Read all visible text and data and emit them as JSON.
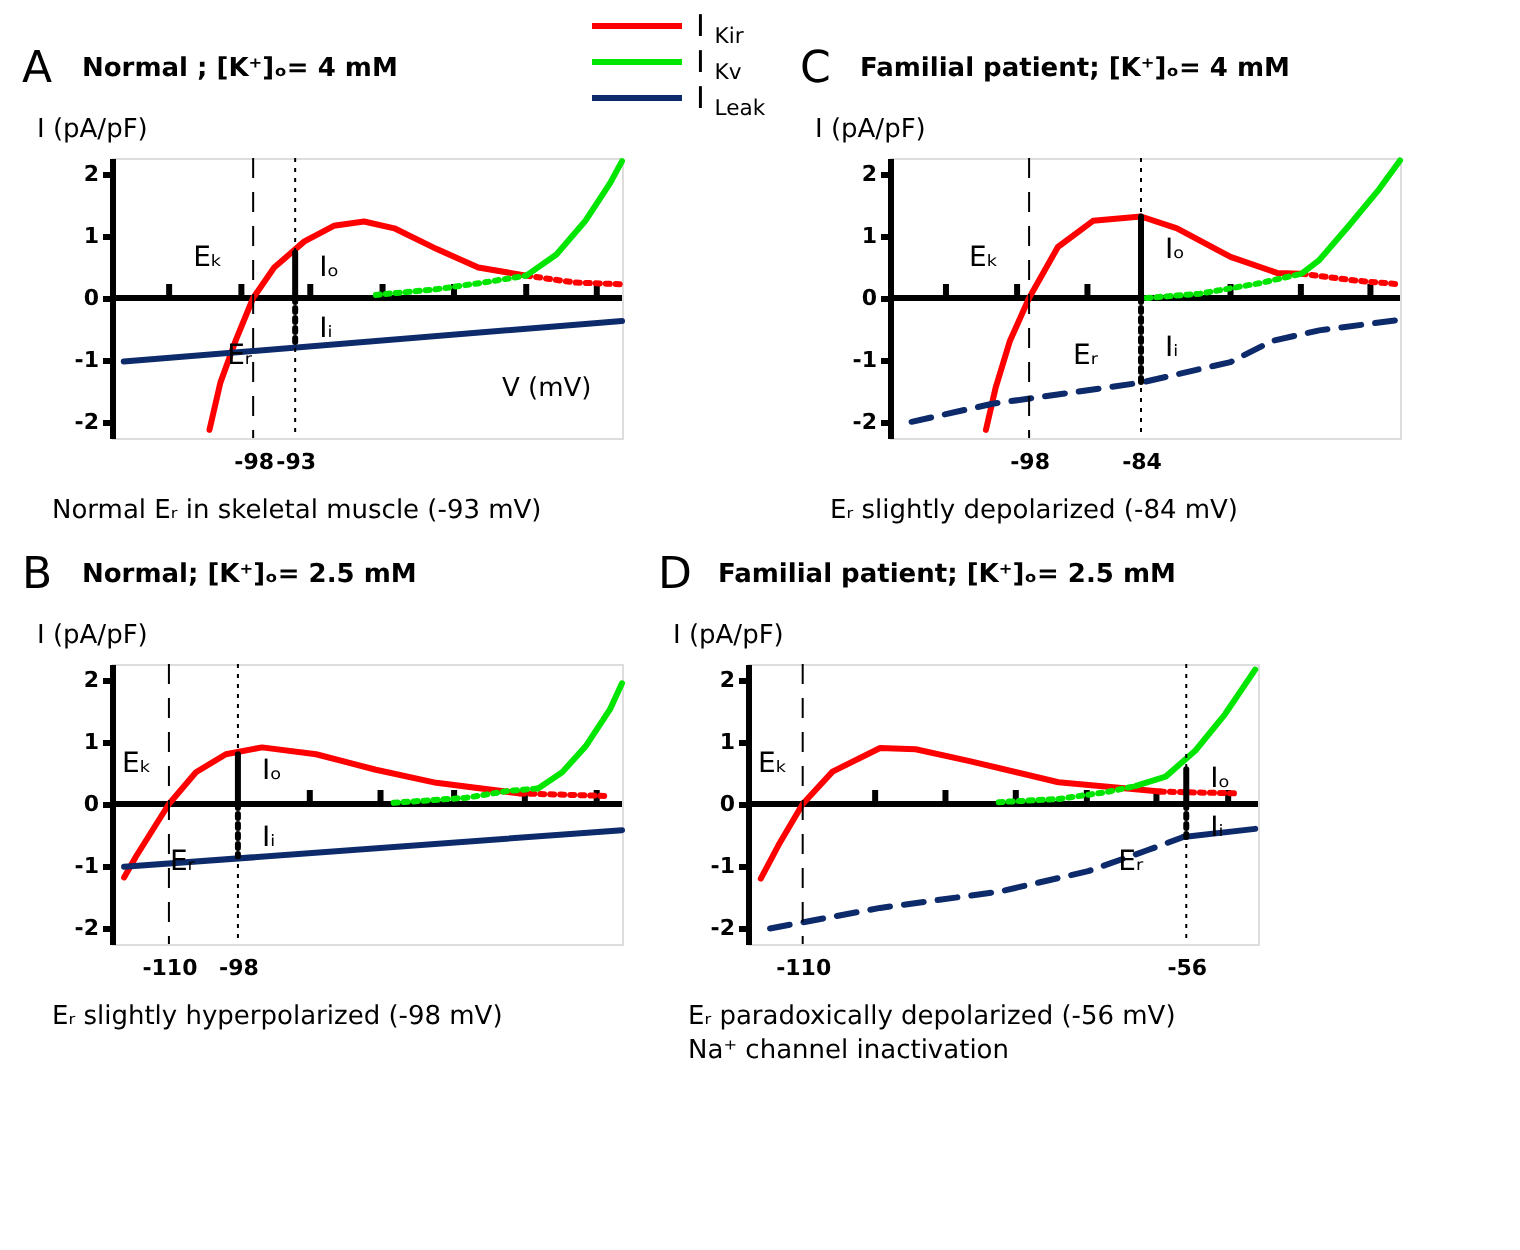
{
  "chart_data": [
    {
      "type": "line",
      "title": "Normal ; [K⁺]ₒ= 4 mM",
      "ylabel": "I (pA/pF)",
      "xlabel": "V (mV)",
      "subtitle": "Normal Eᵣ in skeletal muscle (-93 mV)",
      "legend": "top right",
      "xlim": [
        -114.8,
        -54.1
      ],
      "ylim": [
        -2.25,
        2.25
      ],
      "yticks": [
        -2,
        -1,
        0,
        1,
        2
      ],
      "xticks": [
        {
          "value": -108,
          "label": null
        },
        {
          "value": -99.4,
          "label": null
        },
        -98,
        -93,
        {
          "value": -91.2,
          "label": null
        },
        {
          "value": -82.6,
          "label": null
        },
        {
          "value": -74.1,
          "label": null
        },
        {
          "value": -65.5,
          "label": null
        },
        {
          "value": -57.1,
          "label": null
        }
      ],
      "series": [
        {
          "name": "I$_{Kir}$",
          "color": "#ff0000",
          "x": [
            -103.2,
            -101.9,
            -100.1,
            -98,
            -95.5,
            -91.9,
            -88.4,
            -84.8,
            -81.2,
            -76.2,
            -71.2,
            -65.5
          ],
          "values": [
            -2.12,
            -1.36,
            -0.69,
            0,
            0.49,
            0.91,
            1.16,
            1.23,
            1.12,
            0.79,
            0.49,
            0.36
          ]
        },
        {
          "color": "#ff0000",
          "line_style": "dotted",
          "x": [
            -65.5,
            -59.8,
            -54.1
          ],
          "values": [
            0.36,
            0.25,
            0.22
          ]
        },
        {
          "color": "#00e600",
          "line_style": "dotted",
          "x": [
            -83.4,
            -76.2,
            -70.5,
            -65.5
          ],
          "values": [
            0.05,
            0.14,
            0.25,
            0.36
          ]
        },
        {
          "name": "I$_{Kv}$",
          "color": "#00e600",
          "x": [
            -65.5,
            -61.9,
            -58.4,
            -55.5,
            -54.1
          ],
          "values": [
            0.36,
            0.7,
            1.25,
            1.85,
            2.2
          ]
        },
        {
          "name": "I$_{Leak}$",
          "color": "#0d2a6b",
          "x": [
            -113.4,
            -54.1
          ],
          "values": [
            -1.02,
            -0.37
          ]
        },
        {
          "color": "#000000",
          "x": [
            -93,
            -93
          ],
          "values": [
            0,
            0.73
          ]
        },
        {
          "color": "#000000",
          "line_style": "dotted",
          "x": [
            -93,
            -93
          ],
          "values": [
            0,
            -0.74
          ]
        }
      ],
      "ref_lines": [
        {
          "axis": "x",
          "value": -98,
          "line_style": "dashed",
          "color": "#000000"
        },
        {
          "axis": "x",
          "value": -93,
          "line_style": "dotted",
          "color": "#000000"
        }
      ],
      "annotations": [
        "A",
        {
          "text": "Eₖ",
          "x": -98,
          "y": 0
        },
        {
          "text": "Eᵣ",
          "x": -93,
          "y": -0.1
        },
        {
          "text": "Iₒ",
          "x": -93,
          "y": 0.36
        },
        {
          "text": "Iᵢ",
          "x": -93,
          "y": -0.37
        }
      ]
    },
    {
      "type": "line",
      "title": "Familial patient; [K⁺]ₒ= 4 mM",
      "ylabel": "I (pA/pF)",
      "subtitle": "Eᵣ slightly depolarized (-84 mV)",
      "xlim": [
        -115.4,
        -51.6
      ],
      "ylim": [
        -2.25,
        2.25
      ],
      "yticks": [
        -2,
        -1,
        0,
        1,
        2
      ],
      "xticks": [
        {
          "value": -108.4,
          "label": null
        },
        {
          "value": -99.5,
          "label": null
        },
        -98,
        {
          "value": -90.7,
          "label": null
        },
        -84,
        {
          "value": -72.8,
          "label": null
        },
        {
          "value": -64.0,
          "label": null
        },
        {
          "value": -55.3,
          "label": null
        }
      ],
      "series": [
        {
          "color": "#ff0000",
          "x": [
            -103.4,
            -102.2,
            -100.4,
            -98,
            -94.4,
            -90,
            -84,
            -79.5,
            -72.8,
            -66.9,
            -63.9
          ],
          "values": [
            -2.12,
            -1.45,
            -0.69,
            0,
            0.82,
            1.24,
            1.31,
            1.12,
            0.66,
            0.4,
            0.39
          ]
        },
        {
          "color": "#ff0000",
          "line_style": "dotted",
          "x": [
            -63.9,
            -57.2,
            -51.6
          ],
          "values": [
            0.39,
            0.28,
            0.22
          ]
        },
        {
          "color": "#00e600",
          "line_style": "dotted",
          "x": [
            -83.3,
            -76.6,
            -69.1,
            -63.9
          ],
          "values": [
            0,
            0.07,
            0.24,
            0.39
          ]
        },
        {
          "color": "#00e600",
          "x": [
            -63.9,
            -61.7,
            -58,
            -54.2,
            -51.6
          ],
          "values": [
            0.39,
            0.61,
            1.16,
            1.75,
            2.21
          ]
        },
        {
          "color": "#0d2a6b",
          "line_style": "dashed",
          "x": [
            -112.7,
            -102.6,
            -84,
            -72.8,
            -67.6,
            -61.7,
            -51.6
          ],
          "values": [
            -1.99,
            -1.7,
            -1.36,
            -1.03,
            -0.69,
            -0.52,
            -0.35
          ]
        },
        {
          "color": "#000000",
          "x": [
            -84,
            -84
          ],
          "values": [
            0,
            1.31
          ]
        },
        {
          "color": "#000000",
          "line_style": "dotted",
          "x": [
            -84,
            -84
          ],
          "values": [
            0,
            -1.36
          ]
        }
      ],
      "ref_lines": [
        {
          "axis": "x",
          "value": -98,
          "line_style": "dashed",
          "color": "#000000"
        },
        {
          "axis": "x",
          "value": -84,
          "line_style": "dotted",
          "color": "#000000"
        }
      ],
      "annotations": [
        "C",
        {
          "text": "Eₖ",
          "x": -98,
          "y": 0
        },
        {
          "text": "Eᵣ",
          "x": -84,
          "y": -0.1
        },
        {
          "text": "Iₒ",
          "x": -84,
          "y": 0.65
        },
        {
          "text": "Iᵢ",
          "x": -84,
          "y": -0.68
        }
      ]
    },
    {
      "type": "line",
      "title": "Normal; [K⁺]ₒ= 2.5 mM",
      "ylabel": "I (pA/pF)",
      "subtitle": "Eᵣ slightly hyperpolarized (-98 mV)",
      "xlim": [
        -119.9,
        -31.2
      ],
      "ylim": [
        -2.25,
        2.25
      ],
      "yticks": [
        -2,
        -1,
        0,
        1,
        2
      ],
      "xticks": [
        -110,
        -98,
        {
          "value": -85.5,
          "label": null
        },
        {
          "value": -73.2,
          "label": null
        },
        {
          "value": -60.4,
          "label": null
        },
        {
          "value": -48.1,
          "label": null
        },
        {
          "value": -35.6,
          "label": null
        }
      ],
      "series": [
        {
          "color": "#ff0000",
          "x": [
            -117.8,
            -115.7,
            -110,
            -105.3,
            -100.1,
            -93.8,
            -84.4,
            -74,
            -63.5,
            -48.9
          ],
          "values": [
            -1.18,
            -0.84,
            0,
            0.51,
            0.8,
            0.91,
            0.8,
            0.55,
            0.34,
            0.17
          ]
        },
        {
          "color": "#ff0000",
          "line_style": "dotted",
          "x": [
            -48.9,
            -34.3
          ],
          "values": [
            0.17,
            0.13
          ]
        },
        {
          "color": "#00e600",
          "line_style": "dotted",
          "x": [
            -70.9,
            -58.3,
            -51,
            -45.8
          ],
          "values": [
            0.02,
            0.1,
            0.21,
            0.25
          ]
        },
        {
          "color": "#00e600",
          "x": [
            -45.8,
            -41.6,
            -37.5,
            -33.3,
            -31.2
          ],
          "values": [
            0.25,
            0.51,
            0.93,
            1.52,
            1.94
          ]
        },
        {
          "color": "#0d2a6b",
          "x": [
            -117.8,
            -31.2
          ],
          "values": [
            -1.01,
            -0.42
          ]
        },
        {
          "color": "#000000",
          "x": [
            -98,
            -98
          ],
          "values": [
            0,
            0.8
          ]
        },
        {
          "color": "#000000",
          "line_style": "dotted",
          "x": [
            -98,
            -98
          ],
          "values": [
            0,
            -0.84
          ]
        }
      ],
      "ref_lines": [
        {
          "axis": "x",
          "value": -110,
          "line_style": "dashed",
          "color": "#000000"
        },
        {
          "axis": "x",
          "value": -98,
          "line_style": "dotted",
          "color": "#000000"
        }
      ],
      "annotations": [
        "B",
        {
          "text": "Eₖ",
          "x": -110,
          "y": 0
        },
        {
          "text": "Eᵣ",
          "x": -98,
          "y": -0.1
        },
        {
          "text": "Iₒ",
          "x": -98,
          "y": 0.4
        },
        {
          "text": "Iᵢ",
          "x": -98,
          "y": -0.42
        }
      ]
    },
    {
      "type": "line",
      "title": "Familial patient; [K⁺]ₒ= 2.5 mM",
      "ylabel": "I (pA/pF)",
      "subtitle": "Eᵣ paradoxically depolarized (-56 mV)",
      "xlim": [
        -117.7,
        -45.9
      ],
      "ylim": [
        -2.25,
        2.25
      ],
      "yticks": [
        -2,
        -1,
        0,
        1,
        2
      ],
      "xticks": [
        -110,
        {
          "value": -99.8,
          "label": null
        },
        {
          "value": -89.9,
          "label": null
        },
        {
          "value": -80,
          "label": null
        },
        {
          "value": -70,
          "label": null
        },
        {
          "value": -60.2,
          "label": null
        },
        -56,
        {
          "value": -50.1,
          "label": null
        }
      ],
      "series": [
        {
          "color": "#ff0000",
          "x": [
            -115.9,
            -113.4,
            -110,
            -105.8,
            -99.1,
            -94.1,
            -86.5,
            -74,
            -59.7
          ],
          "values": [
            -1.2,
            -0.66,
            0,
            0.52,
            0.9,
            0.88,
            0.69,
            0.35,
            0.2
          ]
        },
        {
          "color": "#ff0000",
          "line_style": "dotted",
          "x": [
            -59.7,
            -48.9
          ],
          "values": [
            0.2,
            0.17
          ]
        },
        {
          "color": "#00e600",
          "line_style": "dotted",
          "x": [
            -82.4,
            -74,
            -67.3,
            -63.1
          ],
          "values": [
            0.03,
            0.08,
            0.19,
            0.29
          ]
        },
        {
          "color": "#00e600",
          "x": [
            -63.1,
            -58.9,
            -54.7,
            -50.5,
            -46.3
          ],
          "values": [
            0.29,
            0.44,
            0.86,
            1.45,
            2.16
          ]
        },
        {
          "color": "#0d2a6b",
          "line_style": "dashed",
          "x": [
            -114.6,
            -99.1,
            -82.4,
            -69.8,
            -61.4,
            -56.4
          ],
          "values": [
            -2.0,
            -1.67,
            -1.41,
            -1.08,
            -0.74,
            -0.53
          ]
        },
        {
          "color": "#0d2a6b",
          "x": [
            -56.4,
            -46.3
          ],
          "values": [
            -0.53,
            -0.4
          ]
        },
        {
          "color": "#000000",
          "x": [
            -56,
            -56
          ],
          "values": [
            0,
            0.56
          ]
        },
        {
          "color": "#000000",
          "line_style": "dotted",
          "x": [
            -56,
            -56
          ],
          "values": [
            0,
            -0.53
          ]
        }
      ],
      "ref_lines": [
        {
          "axis": "x",
          "value": -110,
          "line_style": "dashed",
          "color": "#000000"
        },
        {
          "axis": "x",
          "value": -56,
          "line_style": "dotted",
          "color": "#000000"
        }
      ],
      "annotations": [
        "D",
        "Na⁺ channel inactivation",
        {
          "text": "Eₖ",
          "x": -110,
          "y": 0
        },
        {
          "text": "Eᵣ",
          "x": -56,
          "y": -0.1
        },
        {
          "text": "Iₒ",
          "x": -56,
          "y": 0.28
        },
        {
          "text": "Iᵢ",
          "x": -56,
          "y": -0.26
        }
      ]
    }
  ]
}
